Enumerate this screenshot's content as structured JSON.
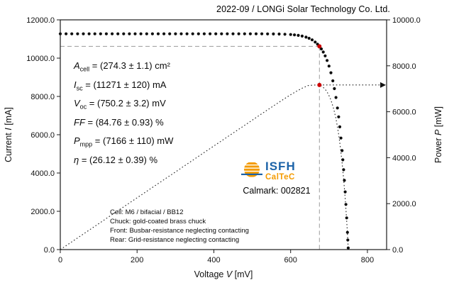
{
  "title": "2022-09 / LONGi Solar Technology Co. Ltd.",
  "calmark": "Calmark: 002821",
  "logo": {
    "line1": "ISFH",
    "line2": "CalTeC"
  },
  "colors": {
    "curve": "#0b0b0b",
    "power_line": "#222222",
    "mpp": "#cc0000",
    "guide": "#9b9b9b",
    "logo_blue": "#1c63a8",
    "logo_orange": "#f49b00"
  },
  "results": [
    {
      "sym": "A",
      "sub": "cell",
      "val": " = (274.3 ± 1.1) cm²"
    },
    {
      "sym": "I",
      "sub": "sc",
      "val": " = (11271 ± 120) mA"
    },
    {
      "sym": "V",
      "sub": "oc",
      "val": " = (750.2 ± 3.2) mV"
    },
    {
      "sym": "FF",
      "sub": "",
      "val": " = (84.76 ± 0.93) %"
    },
    {
      "sym": "P",
      "sub": "mpp",
      "val": " = (7166 ± 110) mW"
    },
    {
      "sym": "η",
      "sub": "",
      "val": " = (26.12 ± 0.39) %"
    }
  ],
  "footer": [
    "Cell: M6 / bifacial / BB12",
    "Chuck: gold-coated brass chuck",
    "Front: Busbar-resistance neglecting contacting",
    "Rear: Grid-resistance neglecting contacting"
  ],
  "chart_data": {
    "type": "scatter",
    "title": "2022-09 / LONGi Solar Technology Co. Ltd.",
    "xlabel": "Voltage V [mV]",
    "ylabel_left": "Current I [mA]",
    "ylabel_right": "Power P [mW]",
    "xlabel_parts": {
      "pre": "Voltage ",
      "var": "V",
      "post": " [mV]"
    },
    "ylabel_left_parts": {
      "pre": "Current ",
      "var": "I",
      "post": " [mA]"
    },
    "ylabel_right_parts": {
      "pre": "Power ",
      "var": "P",
      "post": " [mW]"
    },
    "xlim": [
      0,
      850
    ],
    "ylim_left": [
      0,
      12000
    ],
    "ylim_right": [
      0,
      10000
    ],
    "x_ticks": [
      0,
      200,
      400,
      600,
      800
    ],
    "y_ticks_left": [
      0,
      2000,
      4000,
      6000,
      8000,
      10000,
      12000
    ],
    "y_ticks_right": [
      0,
      2000,
      4000,
      6000,
      8000,
      10000
    ],
    "grid": false,
    "legend": "none",
    "mpp": {
      "v": 675,
      "i": 10618,
      "p": 7166
    },
    "series": [
      {
        "name": "I-V curve",
        "axis": "left",
        "style": "dots",
        "points": [
          [
            0,
            11271
          ],
          [
            15,
            11271
          ],
          [
            30,
            11271
          ],
          [
            45,
            11271
          ],
          [
            60,
            11271
          ],
          [
            75,
            11271
          ],
          [
            90,
            11271
          ],
          [
            105,
            11271
          ],
          [
            120,
            11271
          ],
          [
            135,
            11271
          ],
          [
            150,
            11271
          ],
          [
            165,
            11271
          ],
          [
            180,
            11271
          ],
          [
            195,
            11271
          ],
          [
            210,
            11271
          ],
          [
            225,
            11271
          ],
          [
            240,
            11271
          ],
          [
            255,
            11271
          ],
          [
            270,
            11271
          ],
          [
            285,
            11271
          ],
          [
            300,
            11271
          ],
          [
            315,
            11271
          ],
          [
            330,
            11271
          ],
          [
            345,
            11271
          ],
          [
            360,
            11271
          ],
          [
            375,
            11271
          ],
          [
            390,
            11270
          ],
          [
            405,
            11270
          ],
          [
            420,
            11270
          ],
          [
            435,
            11270
          ],
          [
            450,
            11270
          ],
          [
            465,
            11270
          ],
          [
            480,
            11270
          ],
          [
            495,
            11270
          ],
          [
            510,
            11270
          ],
          [
            525,
            11269
          ],
          [
            540,
            11267
          ],
          [
            555,
            11264
          ],
          [
            570,
            11259
          ],
          [
            585,
            11249
          ],
          [
            600,
            11233
          ],
          [
            610,
            11215
          ],
          [
            620,
            11190
          ],
          [
            630,
            11152
          ],
          [
            640,
            11097
          ],
          [
            648,
            11036
          ],
          [
            656,
            10954
          ],
          [
            664,
            10840
          ],
          [
            670,
            10731
          ],
          [
            675,
            10618
          ],
          [
            680,
            10482
          ],
          [
            685,
            10318
          ],
          [
            690,
            10118
          ],
          [
            695,
            9877
          ],
          [
            700,
            9585
          ],
          [
            705,
            9237
          ],
          [
            710,
            8814
          ],
          [
            714,
            8409
          ],
          [
            718,
            7944
          ],
          [
            722,
            7397
          ],
          [
            725,
            6932
          ],
          [
            728,
            6410
          ],
          [
            731,
            5825
          ],
          [
            734,
            5169
          ],
          [
            736,
            4690
          ],
          [
            738,
            4172
          ],
          [
            740,
            3613
          ],
          [
            742,
            3013
          ],
          [
            744,
            2360
          ],
          [
            746,
            1657
          ],
          [
            748,
            901
          ],
          [
            749,
            501
          ],
          [
            750,
            85
          ]
        ]
      },
      {
        "name": "P-V curve",
        "axis": "right",
        "style": "dotted-line",
        "points": [
          [
            0,
            0
          ],
          [
            25,
            282
          ],
          [
            50,
            564
          ],
          [
            75,
            845
          ],
          [
            100,
            1127
          ],
          [
            125,
            1409
          ],
          [
            150,
            1691
          ],
          [
            175,
            1972
          ],
          [
            200,
            2254
          ],
          [
            225,
            2536
          ],
          [
            250,
            2818
          ],
          [
            275,
            3100
          ],
          [
            300,
            3381
          ],
          [
            325,
            3663
          ],
          [
            350,
            3945
          ],
          [
            375,
            4227
          ],
          [
            400,
            4508
          ],
          [
            425,
            4790
          ],
          [
            450,
            5072
          ],
          [
            475,
            5353
          ],
          [
            500,
            5634
          ],
          [
            525,
            5916
          ],
          [
            550,
            6195
          ],
          [
            575,
            6471
          ],
          [
            600,
            6740
          ],
          [
            615,
            6890
          ],
          [
            630,
            7026
          ],
          [
            645,
            7140
          ],
          [
            660,
            7160
          ],
          [
            668,
            7168
          ],
          [
            675,
            7166
          ],
          [
            682,
            7106
          ],
          [
            690,
            6981
          ],
          [
            698,
            6778
          ],
          [
            705,
            6512
          ],
          [
            712,
            6137
          ],
          [
            718,
            5704
          ],
          [
            724,
            5135
          ],
          [
            729,
            4536
          ],
          [
            734,
            3794
          ],
          [
            738,
            3079
          ],
          [
            742,
            2236
          ],
          [
            745,
            1501
          ],
          [
            747,
            961
          ],
          [
            749,
            375
          ],
          [
            750,
            60
          ]
        ]
      }
    ]
  }
}
